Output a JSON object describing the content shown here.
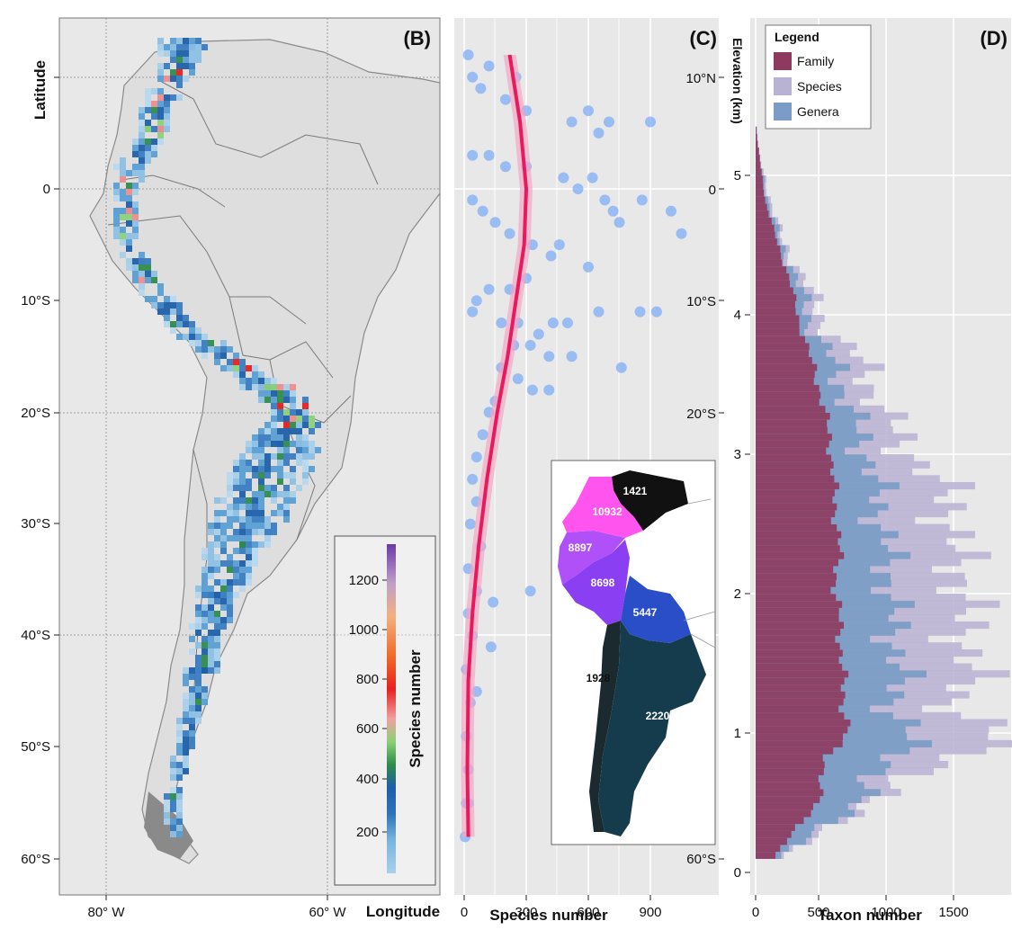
{
  "panels": {
    "b": {
      "tag": "(B)",
      "ylabel": "Latitude",
      "xlabel": "Longitude",
      "y_ticks": [
        "10°S",
        "20°S",
        "30°S",
        "40°S",
        "50°S",
        "60°S"
      ],
      "x_ticks": [
        "80° W",
        "60° W"
      ],
      "colorbar_title": "Species  number",
      "colorbar_ticks": [
        "200",
        "400",
        "600",
        "800",
        "1000",
        "1200"
      ]
    },
    "c": {
      "tag": "(C)",
      "xlabel": "Species number",
      "x_ticks": [
        "0",
        "300",
        "600",
        "900"
      ],
      "lat_ticks": [
        "10°N",
        "0",
        "10°S",
        "20°S",
        "60°S"
      ]
    },
    "d": {
      "tag": "(D)",
      "ylabel": "Elevation (km)",
      "xlabel": "Taxon number",
      "y_ticks": [
        "0",
        "1",
        "2",
        "3",
        "4",
        "5"
      ],
      "x_ticks": [
        "0",
        "500",
        "1000",
        "1500"
      ],
      "legend_title": "Legend"
    }
  },
  "colors": {
    "panel_bg": "#e8e8e8",
    "land": "#dedede",
    "point": "#7aaaf5",
    "curve": "#e8195c",
    "family": "#8e3a5f",
    "species": "#b8b2d3",
    "genera": "#7a9cc6"
  },
  "chart_data": [
    {
      "type": "heatmap",
      "title": "",
      "xlabel": "Longitude",
      "ylabel": "Latitude",
      "colorbar_label": "Species  number",
      "colorbar_range": [
        0,
        1300
      ],
      "colorbar_stops": [
        "#a8d0ea",
        "#4a90c8",
        "#1f5fa8",
        "#2e8b4a",
        "#8cd07a",
        "#f08c8c",
        "#e62020",
        "#f07830",
        "#f2a060",
        "#8a4fb8"
      ]
    },
    {
      "type": "scatter",
      "title": "",
      "xlabel": "Species number",
      "ylabel": "Latitude",
      "xlim": [
        0,
        1100
      ],
      "points": [
        [
          20,
          12
        ],
        [
          40,
          10
        ],
        [
          80,
          9
        ],
        [
          120,
          11
        ],
        [
          200,
          8
        ],
        [
          250,
          10
        ],
        [
          300,
          7
        ],
        [
          520,
          6
        ],
        [
          600,
          7
        ],
        [
          700,
          6
        ],
        [
          900,
          6
        ],
        [
          650,
          5
        ],
        [
          40,
          3
        ],
        [
          120,
          3
        ],
        [
          200,
          2
        ],
        [
          300,
          2
        ],
        [
          480,
          1
        ],
        [
          550,
          0
        ],
        [
          620,
          1
        ],
        [
          680,
          -1
        ],
        [
          720,
          -2
        ],
        [
          860,
          -1
        ],
        [
          1000,
          -2
        ],
        [
          1050,
          -4
        ],
        [
          750,
          -3
        ],
        [
          40,
          -1
        ],
        [
          90,
          -2
        ],
        [
          150,
          -3
        ],
        [
          220,
          -4
        ],
        [
          330,
          -5
        ],
        [
          420,
          -6
        ],
        [
          460,
          -5
        ],
        [
          600,
          -7
        ],
        [
          300,
          -8
        ],
        [
          220,
          -9
        ],
        [
          120,
          -9
        ],
        [
          60,
          -10
        ],
        [
          40,
          -11
        ],
        [
          180,
          -12
        ],
        [
          260,
          -12
        ],
        [
          360,
          -13
        ],
        [
          430,
          -12
        ],
        [
          500,
          -12
        ],
        [
          650,
          -11
        ],
        [
          850,
          -11
        ],
        [
          930,
          -11
        ],
        [
          240,
          -14
        ],
        [
          320,
          -14
        ],
        [
          410,
          -15
        ],
        [
          520,
          -15
        ],
        [
          760,
          -16
        ],
        [
          180,
          -16
        ],
        [
          260,
          -17
        ],
        [
          330,
          -18
        ],
        [
          410,
          -18
        ],
        [
          150,
          -19
        ],
        [
          120,
          -20
        ],
        [
          90,
          -22
        ],
        [
          60,
          -24
        ],
        [
          40,
          -26
        ],
        [
          60,
          -28
        ],
        [
          30,
          -30
        ],
        [
          80,
          -32
        ],
        [
          20,
          -34
        ],
        [
          60,
          -36
        ],
        [
          20,
          -38
        ],
        [
          40,
          -40
        ],
        [
          10,
          -43
        ],
        [
          30,
          -46
        ],
        [
          10,
          -49
        ],
        [
          20,
          -52
        ],
        [
          10,
          -55
        ],
        [
          5,
          -58
        ],
        [
          140,
          -37
        ],
        [
          320,
          -36
        ],
        [
          130,
          -41
        ],
        [
          60,
          -45
        ],
        [
          20,
          -55
        ]
      ],
      "fit_curve": [
        [
          220,
          12
        ],
        [
          270,
          6
        ],
        [
          300,
          0
        ],
        [
          290,
          -5
        ],
        [
          250,
          -10
        ],
        [
          210,
          -15
        ],
        [
          160,
          -20
        ],
        [
          110,
          -26
        ],
        [
          70,
          -32
        ],
        [
          40,
          -38
        ],
        [
          20,
          -44
        ],
        [
          15,
          -52
        ],
        [
          20,
          -58
        ]
      ]
    },
    {
      "type": "bar",
      "title": "",
      "xlabel": "Taxon number",
      "ylabel": "Elevation (km)",
      "xlim": [
        0,
        1950
      ],
      "ylim": [
        0,
        5.5
      ],
      "elevation_step_km": 0.05,
      "series": [
        {
          "name": "Family",
          "profile": [
            [
              0.1,
              150
            ],
            [
              0.3,
              310
            ],
            [
              0.5,
              470
            ],
            [
              0.8,
              520
            ],
            [
              1.0,
              690
            ],
            [
              1.2,
              650
            ],
            [
              1.5,
              640
            ],
            [
              1.8,
              620
            ],
            [
              2.0,
              590
            ],
            [
              2.3,
              620
            ],
            [
              2.6,
              590
            ],
            [
              3.0,
              560
            ],
            [
              3.3,
              510
            ],
            [
              3.6,
              430
            ],
            [
              3.9,
              330
            ],
            [
              4.2,
              260
            ],
            [
              4.5,
              160
            ],
            [
              4.8,
              70
            ],
            [
              5.1,
              30
            ],
            [
              5.3,
              5
            ]
          ]
        },
        {
          "name": "Species",
          "profile": [
            [
              0.1,
              220
            ],
            [
              0.3,
              590
            ],
            [
              0.5,
              820
            ],
            [
              0.8,
              1550
            ],
            [
              1.0,
              1790
            ],
            [
              1.2,
              1450
            ],
            [
              1.5,
              1640
            ],
            [
              1.8,
              1500
            ],
            [
              2.0,
              1600
            ],
            [
              2.3,
              1450
            ],
            [
              2.6,
              1480
            ],
            [
              3.0,
              1150
            ],
            [
              3.3,
              920
            ],
            [
              3.6,
              820
            ],
            [
              3.9,
              510
            ],
            [
              4.2,
              380
            ],
            [
              4.5,
              200
            ],
            [
              4.8,
              110
            ],
            [
              5.1,
              30
            ],
            [
              5.3,
              10
            ]
          ]
        },
        {
          "name": "Genera",
          "profile": [
            [
              0.1,
              200
            ],
            [
              0.3,
              520
            ],
            [
              0.5,
              760
            ],
            [
              0.8,
              1050
            ],
            [
              1.0,
              1150
            ],
            [
              1.2,
              1020
            ],
            [
              1.5,
              1080
            ],
            [
              1.8,
              1000
            ],
            [
              2.0,
              1020
            ],
            [
              2.3,
              960
            ],
            [
              2.6,
              930
            ],
            [
              3.0,
              820
            ],
            [
              3.3,
              700
            ],
            [
              3.6,
              600
            ],
            [
              3.9,
              410
            ],
            [
              4.2,
              320
            ],
            [
              4.5,
              180
            ],
            [
              4.8,
              90
            ],
            [
              5.1,
              25
            ],
            [
              5.3,
              8
            ]
          ]
        }
      ]
    },
    {
      "type": "map",
      "title": "",
      "regions": [
        {
          "value": "1421",
          "color": "#111111",
          "text": "#ffffff"
        },
        {
          "value": "10932",
          "color": "#ff55ee",
          "text": "#ffffff"
        },
        {
          "value": "8897",
          "color": "#b050f8",
          "text": "#ffffff"
        },
        {
          "value": "8698",
          "color": "#8a3ff2",
          "text": "#ffffff"
        },
        {
          "value": "5447",
          "color": "#2a4ec8",
          "text": "#ffffff"
        },
        {
          "value": "1928",
          "color": "#1b2a2e",
          "text": "#111111"
        },
        {
          "value": "2220",
          "color": "#153c4c",
          "text": "#ffffff"
        }
      ]
    }
  ]
}
